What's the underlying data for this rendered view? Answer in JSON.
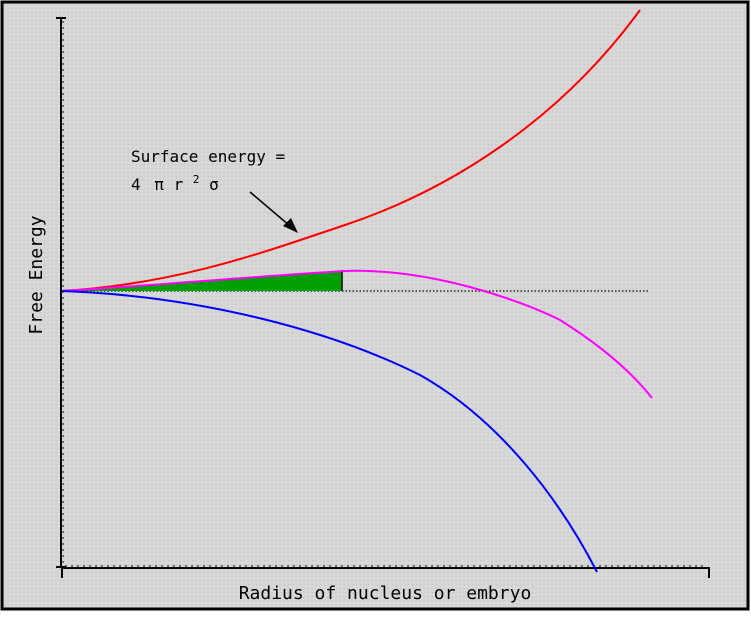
{
  "figure": {
    "x_axis_label": "Radius of nucleus or embryo",
    "y_axis_label": "Free Energy",
    "annotation": {
      "line1": "Surface energy =",
      "line2_prefix": "4",
      "line2_pi": "π",
      "line2_r": "r",
      "line2_exp": "2",
      "line2_sigma": "σ"
    },
    "curves": [
      {
        "name": "surface-energy-curve",
        "color": "#ff0000"
      },
      {
        "name": "total-energy-curve",
        "color": "#ff00ff"
      },
      {
        "name": "volume-energy-curve",
        "color": "#0000ff"
      }
    ],
    "barrier_fill_color": "#00a000",
    "background_color": "#d8d8d8"
  }
}
